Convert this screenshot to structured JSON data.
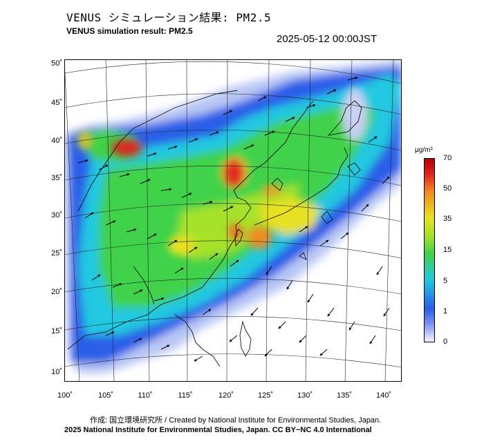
{
  "title_ja": "VENUS シミュレーション結果: PM2.5",
  "title_en": "VENUS simulation result: PM2.5",
  "timestamp": "2025-05-12 00:00JST",
  "y_ticks": [
    "50˚",
    "45˚",
    "40˚",
    "35˚",
    "30˚",
    "25˚",
    "20˚",
    "15˚",
    "10˚"
  ],
  "x_ticks": [
    "100˚",
    "105˚",
    "110˚",
    "115˚",
    "120˚",
    "125˚",
    "130˚",
    "135˚",
    "140˚"
  ],
  "colorbar": {
    "unit": "μg/m³",
    "labels": [
      "70",
      "50",
      "35",
      "15",
      "5",
      "1",
      "0"
    ]
  },
  "credit_line1": "作成: 国立環境研究所 / Created by National Institute for Environmental Studies, Japan.",
  "credit_line2": "2025 National Institute for Environmental Studies, Japan. CC BY−NC 4.0 International",
  "colors": {
    "low": "#dde4fa",
    "blue": "#2a5ee8",
    "cyan": "#20c8e0",
    "green": "#3fd24a",
    "yellow": "#e8e020",
    "orange": "#f08a20",
    "red": "#e02020"
  }
}
